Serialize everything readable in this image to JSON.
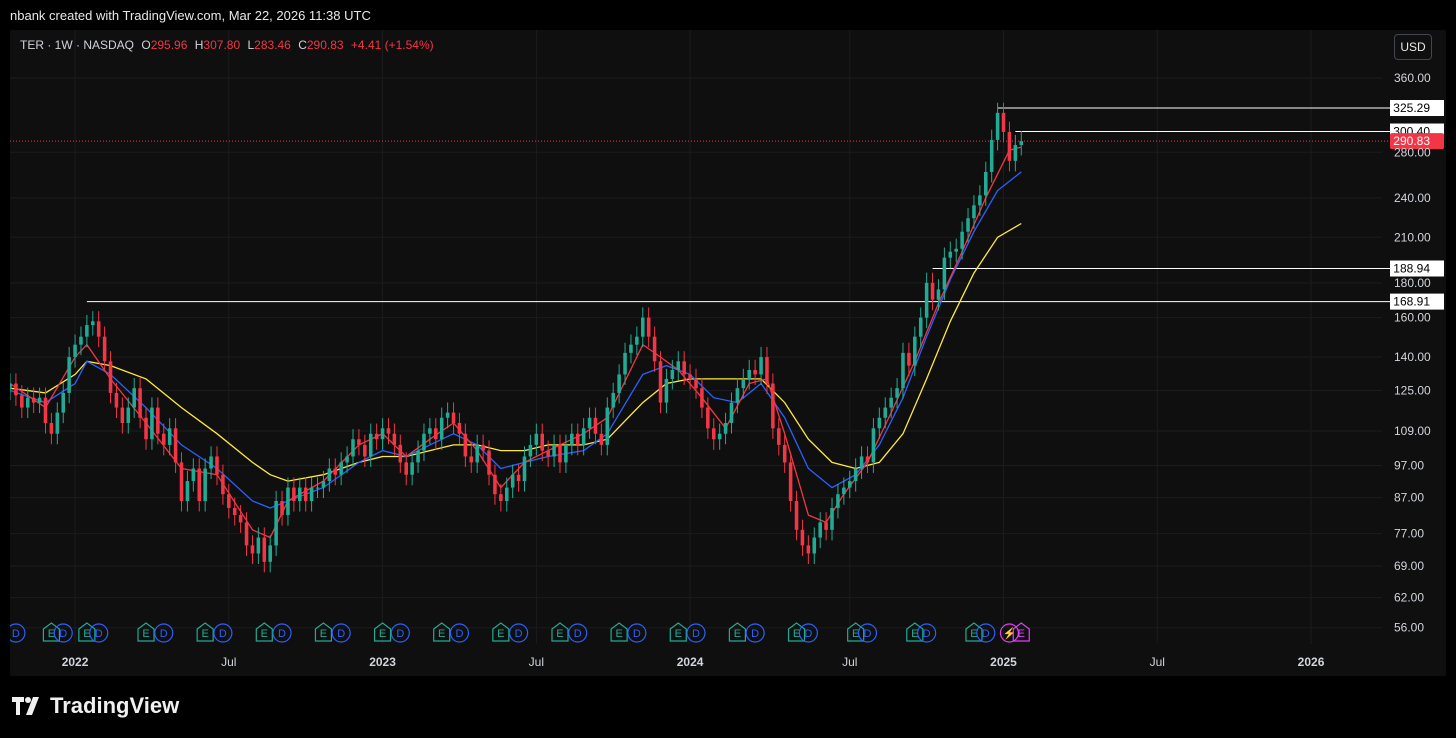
{
  "header": {
    "text": "nbank created with TradingView.com, Mar 22, 2026 11:38 UTC"
  },
  "legend": {
    "symbol": "TER · 1W · NASDAQ",
    "o_label": "O",
    "o": "295.96",
    "h_label": "H",
    "h": "307.80",
    "l_label": "L",
    "l": "283.46",
    "c_label": "C",
    "c": "290.83",
    "change": "+4.41 (+1.54%)"
  },
  "currency_button": "USD",
  "brand": {
    "name": "TradingView"
  },
  "colors": {
    "up": "#22ab94",
    "down": "#f23645",
    "ma_fast": "#f23645",
    "ma_mid": "#2962ff",
    "ma_slow": "#ffeb3b",
    "bg": "#0f0f0f"
  },
  "chart_data": {
    "type": "candlestick",
    "scale": "log",
    "ylim": [
      53,
      375
    ],
    "y_ticks": [
      "360.00",
      "280.00",
      "240.00",
      "210.00",
      "180.00",
      "160.00",
      "140.00",
      "125.00",
      "109.00",
      "97.00",
      "87.00",
      "77.00",
      "69.00",
      "62.00",
      "56.00"
    ],
    "x_labels": [
      "2022",
      "Jul",
      "2023",
      "Jul",
      "2024",
      "Jul",
      "2025",
      "Jul",
      "2026"
    ],
    "x_label_weeks": [
      0.0,
      26.0,
      52.0,
      78.0,
      104.0,
      131.0,
      157.0,
      183.0,
      209.0
    ],
    "xlim_weeks": [
      -11.0,
      221.0
    ],
    "series_close": [
      [
        -11,
        128
      ],
      [
        -10,
        123
      ],
      [
        -9,
        118
      ],
      [
        -8,
        122
      ],
      [
        -7,
        120
      ],
      [
        -6,
        122
      ],
      [
        -5,
        112
      ],
      [
        -4,
        108
      ],
      [
        -3,
        116
      ],
      [
        -2,
        124
      ],
      [
        -1,
        140
      ],
      [
        0,
        146
      ],
      [
        1,
        150
      ],
      [
        2,
        156
      ],
      [
        3,
        158
      ],
      [
        4,
        150
      ],
      [
        5,
        138
      ],
      [
        6,
        124
      ],
      [
        7,
        118
      ],
      [
        8,
        112
      ],
      [
        9,
        118
      ],
      [
        10,
        126
      ],
      [
        11,
        114
      ],
      [
        12,
        106
      ],
      [
        13,
        118
      ],
      [
        14,
        108
      ],
      [
        15,
        104
      ],
      [
        16,
        110
      ],
      [
        17,
        98
      ],
      [
        18,
        86
      ],
      [
        19,
        92
      ],
      [
        20,
        96
      ],
      [
        21,
        86
      ],
      [
        22,
        96
      ],
      [
        23,
        100
      ],
      [
        24,
        94
      ],
      [
        25,
        88
      ],
      [
        26,
        84
      ],
      [
        27,
        82
      ],
      [
        28,
        80
      ],
      [
        29,
        74
      ],
      [
        30,
        72
      ],
      [
        31,
        76
      ],
      [
        32,
        70
      ],
      [
        33,
        74
      ],
      [
        34,
        86
      ],
      [
        35,
        82
      ],
      [
        36,
        90
      ],
      [
        37,
        86
      ],
      [
        38,
        90
      ],
      [
        39,
        86
      ],
      [
        40,
        90
      ],
      [
        41,
        90
      ],
      [
        42,
        92
      ],
      [
        43,
        96
      ],
      [
        44,
        94
      ],
      [
        45,
        98
      ],
      [
        46,
        100
      ],
      [
        47,
        106
      ],
      [
        48,
        104
      ],
      [
        49,
        100
      ],
      [
        50,
        108
      ],
      [
        51,
        106
      ],
      [
        52,
        110
      ],
      [
        53,
        108
      ],
      [
        54,
        104
      ],
      [
        55,
        98
      ],
      [
        56,
        94
      ],
      [
        57,
        98
      ],
      [
        58,
        102
      ],
      [
        59,
        108
      ],
      [
        60,
        110
      ],
      [
        61,
        106
      ],
      [
        62,
        114
      ],
      [
        63,
        116
      ],
      [
        64,
        112
      ],
      [
        65,
        108
      ],
      [
        66,
        100
      ],
      [
        67,
        98
      ],
      [
        68,
        104
      ],
      [
        69,
        102
      ],
      [
        70,
        94
      ],
      [
        71,
        88
      ],
      [
        72,
        86
      ],
      [
        73,
        90
      ],
      [
        74,
        94
      ],
      [
        75,
        92
      ],
      [
        76,
        100
      ],
      [
        77,
        104
      ],
      [
        78,
        108
      ],
      [
        79,
        102
      ],
      [
        80,
        100
      ],
      [
        81,
        104
      ],
      [
        82,
        98
      ],
      [
        83,
        104
      ],
      [
        84,
        108
      ],
      [
        85,
        104
      ],
      [
        86,
        110
      ],
      [
        87,
        114
      ],
      [
        88,
        108
      ],
      [
        89,
        104
      ],
      [
        90,
        118
      ],
      [
        91,
        124
      ],
      [
        92,
        132
      ],
      [
        93,
        142
      ],
      [
        94,
        146
      ],
      [
        95,
        150
      ],
      [
        96,
        160
      ],
      [
        97,
        150
      ],
      [
        98,
        138
      ],
      [
        99,
        120
      ],
      [
        100,
        130
      ],
      [
        101,
        134
      ],
      [
        102,
        138
      ],
      [
        103,
        132
      ],
      [
        104,
        130
      ],
      [
        105,
        126
      ],
      [
        106,
        118
      ],
      [
        107,
        110
      ],
      [
        108,
        106
      ],
      [
        109,
        108
      ],
      [
        110,
        112
      ],
      [
        111,
        120
      ],
      [
        112,
        126
      ],
      [
        113,
        130
      ],
      [
        114,
        134
      ],
      [
        115,
        132
      ],
      [
        116,
        140
      ],
      [
        117,
        128
      ],
      [
        118,
        110
      ],
      [
        119,
        104
      ],
      [
        120,
        98
      ],
      [
        121,
        86
      ],
      [
        122,
        78
      ],
      [
        123,
        74
      ],
      [
        124,
        72
      ],
      [
        125,
        76
      ],
      [
        126,
        80
      ],
      [
        127,
        78
      ],
      [
        128,
        84
      ],
      [
        129,
        88
      ],
      [
        130,
        90
      ],
      [
        131,
        92
      ],
      [
        132,
        96
      ],
      [
        133,
        100
      ],
      [
        134,
        98
      ],
      [
        135,
        110
      ],
      [
        136,
        114
      ],
      [
        137,
        118
      ],
      [
        138,
        122
      ],
      [
        139,
        126
      ],
      [
        140,
        142
      ],
      [
        141,
        136
      ],
      [
        142,
        150
      ],
      [
        143,
        160
      ],
      [
        144,
        180
      ],
      [
        145,
        170
      ],
      [
        146,
        176
      ],
      [
        147,
        196
      ],
      [
        148,
        200
      ],
      [
        149,
        202
      ],
      [
        150,
        214
      ],
      [
        151,
        224
      ],
      [
        152,
        234
      ],
      [
        153,
        242
      ],
      [
        154,
        262
      ],
      [
        155,
        292
      ],
      [
        156,
        320
      ],
      [
        157,
        300
      ],
      [
        158,
        272
      ],
      [
        159,
        287
      ],
      [
        160,
        290.83
      ]
    ],
    "ma_fast_ema10": [
      [
        -11,
        128
      ],
      [
        -5,
        118
      ],
      [
        0,
        140
      ],
      [
        2,
        146
      ],
      [
        6,
        130
      ],
      [
        12,
        112
      ],
      [
        18,
        96
      ],
      [
        24,
        94
      ],
      [
        30,
        78
      ],
      [
        33,
        76
      ],
      [
        36,
        86
      ],
      [
        42,
        92
      ],
      [
        48,
        104
      ],
      [
        52,
        108
      ],
      [
        56,
        100
      ],
      [
        60,
        106
      ],
      [
        64,
        112
      ],
      [
        68,
        102
      ],
      [
        72,
        90
      ],
      [
        76,
        98
      ],
      [
        80,
        102
      ],
      [
        86,
        108
      ],
      [
        90,
        114
      ],
      [
        96,
        146
      ],
      [
        98,
        142
      ],
      [
        102,
        134
      ],
      [
        106,
        122
      ],
      [
        110,
        110
      ],
      [
        114,
        128
      ],
      [
        117,
        130
      ],
      [
        120,
        108
      ],
      [
        124,
        82
      ],
      [
        127,
        80
      ],
      [
        130,
        88
      ],
      [
        134,
        98
      ],
      [
        138,
        116
      ],
      [
        142,
        138
      ],
      [
        146,
        168
      ],
      [
        150,
        200
      ],
      [
        154,
        240
      ],
      [
        158,
        282
      ],
      [
        160,
        285
      ]
    ],
    "ma_mid_ema20": [
      [
        -11,
        125
      ],
      [
        -5,
        120
      ],
      [
        0,
        128
      ],
      [
        2,
        138
      ],
      [
        6,
        132
      ],
      [
        12,
        118
      ],
      [
        18,
        104
      ],
      [
        24,
        96
      ],
      [
        30,
        86
      ],
      [
        33,
        84
      ],
      [
        36,
        86
      ],
      [
        42,
        90
      ],
      [
        48,
        98
      ],
      [
        52,
        102
      ],
      [
        56,
        100
      ],
      [
        60,
        104
      ],
      [
        64,
        108
      ],
      [
        68,
        104
      ],
      [
        72,
        96
      ],
      [
        76,
        98
      ],
      [
        80,
        100
      ],
      [
        86,
        102
      ],
      [
        90,
        108
      ],
      [
        96,
        132
      ],
      [
        100,
        136
      ],
      [
        104,
        132
      ],
      [
        108,
        122
      ],
      [
        112,
        120
      ],
      [
        116,
        128
      ],
      [
        120,
        114
      ],
      [
        124,
        96
      ],
      [
        128,
        90
      ],
      [
        132,
        94
      ],
      [
        136,
        104
      ],
      [
        140,
        122
      ],
      [
        144,
        150
      ],
      [
        148,
        182
      ],
      [
        152,
        214
      ],
      [
        156,
        246
      ],
      [
        160,
        262
      ]
    ],
    "ma_slow_ema40": [
      [
        -11,
        126
      ],
      [
        -5,
        124
      ],
      [
        0,
        132
      ],
      [
        2,
        138
      ],
      [
        6,
        136
      ],
      [
        12,
        130
      ],
      [
        18,
        118
      ],
      [
        24,
        108
      ],
      [
        30,
        98
      ],
      [
        33,
        94
      ],
      [
        36,
        92
      ],
      [
        42,
        94
      ],
      [
        48,
        98
      ],
      [
        52,
        100
      ],
      [
        56,
        100
      ],
      [
        60,
        102
      ],
      [
        64,
        104
      ],
      [
        68,
        104
      ],
      [
        72,
        102
      ],
      [
        76,
        102
      ],
      [
        80,
        104
      ],
      [
        86,
        104
      ],
      [
        90,
        106
      ],
      [
        96,
        120
      ],
      [
        100,
        128
      ],
      [
        104,
        130
      ],
      [
        108,
        130
      ],
      [
        112,
        130
      ],
      [
        116,
        130
      ],
      [
        120,
        120
      ],
      [
        124,
        106
      ],
      [
        128,
        98
      ],
      [
        132,
        96
      ],
      [
        136,
        98
      ],
      [
        140,
        108
      ],
      [
        144,
        130
      ],
      [
        148,
        158
      ],
      [
        152,
        186
      ],
      [
        156,
        210
      ],
      [
        160,
        220
      ]
    ],
    "hlines": [
      {
        "label": "325.29",
        "value": 325.29,
        "from_week": 156
      },
      {
        "label": "300.40",
        "value": 300.4,
        "from_week": 159
      },
      {
        "label": "188.94",
        "value": 188.94,
        "from_week": 145
      },
      {
        "label": "168.91",
        "value": 168.91,
        "from_week": 2
      }
    ],
    "last_price": {
      "label": "290.83",
      "value": 290.83
    },
    "events": [
      {
        "w": -10,
        "t": "D"
      },
      {
        "w": -4,
        "t": "E"
      },
      {
        "w": -2,
        "t": "D"
      },
      {
        "w": 2,
        "t": "E"
      },
      {
        "w": 4,
        "t": "D"
      },
      {
        "w": 12,
        "t": "E"
      },
      {
        "w": 15,
        "t": "D"
      },
      {
        "w": 22,
        "t": "E"
      },
      {
        "w": 25,
        "t": "D"
      },
      {
        "w": 32,
        "t": "E"
      },
      {
        "w": 35,
        "t": "D"
      },
      {
        "w": 42,
        "t": "E"
      },
      {
        "w": 45,
        "t": "D"
      },
      {
        "w": 52,
        "t": "E"
      },
      {
        "w": 55,
        "t": "D"
      },
      {
        "w": 62,
        "t": "E"
      },
      {
        "w": 65,
        "t": "D"
      },
      {
        "w": 72,
        "t": "E"
      },
      {
        "w": 75,
        "t": "D"
      },
      {
        "w": 82,
        "t": "E"
      },
      {
        "w": 85,
        "t": "D"
      },
      {
        "w": 92,
        "t": "E"
      },
      {
        "w": 95,
        "t": "D"
      },
      {
        "w": 102,
        "t": "E"
      },
      {
        "w": 105,
        "t": "D"
      },
      {
        "w": 112,
        "t": "E"
      },
      {
        "w": 115,
        "t": "D"
      },
      {
        "w": 122,
        "t": "E"
      },
      {
        "w": 124,
        "t": "D"
      },
      {
        "w": 132,
        "t": "E"
      },
      {
        "w": 134,
        "t": "D"
      },
      {
        "w": 142,
        "t": "E"
      },
      {
        "w": 144,
        "t": "D"
      },
      {
        "w": 152,
        "t": "E"
      },
      {
        "w": 154,
        "t": "D"
      },
      {
        "w": 158,
        "t": "S"
      },
      {
        "w": 160,
        "t": "F"
      }
    ],
    "event_icon_names": {
      "D": "dividend-icon",
      "E": "earnings-icon",
      "S": "split-icon",
      "F": "future-earnings-icon"
    }
  }
}
